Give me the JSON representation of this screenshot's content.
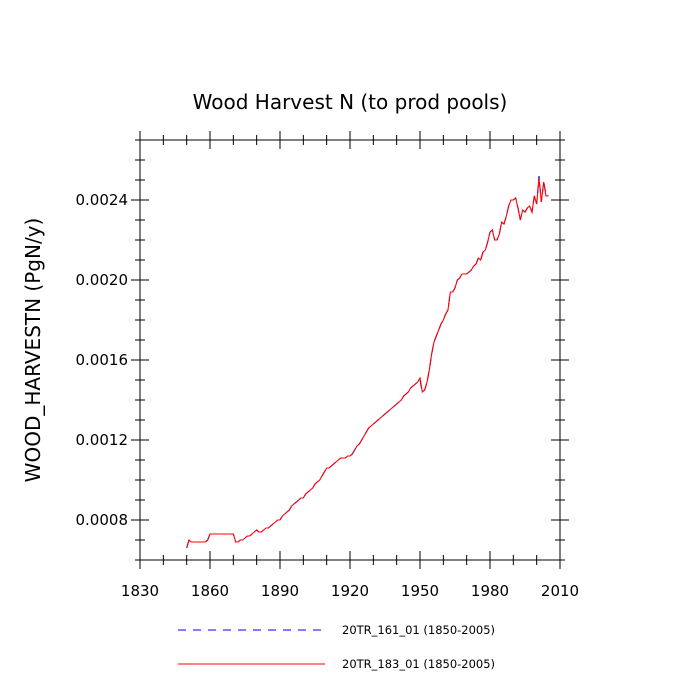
{
  "chart_data": {
    "type": "line",
    "title": "Wood Harvest N (to prod pools)",
    "xlabel": "",
    "ylabel": "WOOD_HARVESTN  (PgN/y)",
    "xlim": [
      1830,
      2010
    ],
    "ylim": [
      0.0006,
      0.0027
    ],
    "xticks": [
      1830,
      1860,
      1890,
      1920,
      1950,
      1980,
      2010
    ],
    "xtick_labels": [
      "1830",
      "1860",
      "1890",
      "1920",
      "1950",
      "1980",
      "2010"
    ],
    "yticks": [
      0.0008,
      0.0012,
      0.0016,
      0.002,
      0.0024
    ],
    "ytick_labels": [
      "0.0008",
      "0.0012",
      "0.0016",
      "0.0020",
      "0.0024"
    ],
    "grid": false,
    "legend_position": "bottom",
    "x": [
      1850,
      1851,
      1852,
      1853,
      1854,
      1855,
      1856,
      1857,
      1858,
      1859,
      1860,
      1861,
      1862,
      1863,
      1864,
      1865,
      1866,
      1867,
      1868,
      1869,
      1870,
      1871,
      1872,
      1873,
      1874,
      1875,
      1876,
      1877,
      1878,
      1879,
      1880,
      1881,
      1882,
      1883,
      1884,
      1885,
      1886,
      1887,
      1888,
      1889,
      1890,
      1891,
      1892,
      1893,
      1894,
      1895,
      1896,
      1897,
      1898,
      1899,
      1900,
      1901,
      1902,
      1903,
      1904,
      1905,
      1906,
      1907,
      1908,
      1909,
      1910,
      1911,
      1912,
      1913,
      1914,
      1915,
      1916,
      1917,
      1918,
      1919,
      1920,
      1921,
      1922,
      1923,
      1924,
      1925,
      1926,
      1927,
      1928,
      1929,
      1930,
      1931,
      1932,
      1933,
      1934,
      1935,
      1936,
      1937,
      1938,
      1939,
      1940,
      1941,
      1942,
      1943,
      1944,
      1945,
      1946,
      1947,
      1948,
      1949,
      1950,
      1951,
      1952,
      1953,
      1954,
      1955,
      1956,
      1957,
      1958,
      1959,
      1960,
      1961,
      1962,
      1963,
      1964,
      1965,
      1966,
      1967,
      1968,
      1969,
      1970,
      1971,
      1972,
      1973,
      1974,
      1975,
      1976,
      1977,
      1978,
      1979,
      1980,
      1981,
      1982,
      1983,
      1984,
      1985,
      1986,
      1987,
      1988,
      1989,
      1990,
      1991,
      1992,
      1993,
      1994,
      1995,
      1996,
      1997,
      1998,
      1999,
      2000,
      2001,
      2002,
      2003,
      2004,
      2005
    ],
    "series": [
      {
        "name": "20TR_161_01 (1850-2005)",
        "color": "#0000ff",
        "dash": "dashed",
        "values": [
          0.00066,
          0.0007,
          0.00069,
          0.00069,
          0.00069,
          0.00069,
          0.00069,
          0.00069,
          0.00069,
          0.0007,
          0.00073,
          0.00073,
          0.00073,
          0.00073,
          0.00073,
          0.00073,
          0.00073,
          0.00073,
          0.00073,
          0.00073,
          0.00073,
          0.00069,
          0.00069,
          0.0007,
          0.0007,
          0.00071,
          0.00072,
          0.00072,
          0.00073,
          0.00074,
          0.00075,
          0.00074,
          0.00074,
          0.00075,
          0.00076,
          0.00076,
          0.00077,
          0.00078,
          0.00079,
          0.0008,
          0.0008,
          0.00082,
          0.00083,
          0.00084,
          0.00085,
          0.00087,
          0.00088,
          0.00089,
          0.0009,
          0.00091,
          0.00091,
          0.00093,
          0.00094,
          0.00095,
          0.00096,
          0.00098,
          0.00099,
          0.001,
          0.00102,
          0.00104,
          0.00106,
          0.00106,
          0.00107,
          0.00108,
          0.00109,
          0.0011,
          0.00111,
          0.00111,
          0.00111,
          0.00112,
          0.00112,
          0.00113,
          0.00115,
          0.00117,
          0.00118,
          0.0012,
          0.00122,
          0.00124,
          0.00126,
          0.00127,
          0.00128,
          0.00129,
          0.0013,
          0.00131,
          0.00132,
          0.00133,
          0.00134,
          0.00135,
          0.00136,
          0.00137,
          0.00138,
          0.00139,
          0.0014,
          0.00142,
          0.00143,
          0.00144,
          0.00146,
          0.00147,
          0.00148,
          0.00149,
          0.0015,
          0.00144,
          0.00145,
          0.00149,
          0.00155,
          0.00163,
          0.00169,
          0.00172,
          0.00175,
          0.00178,
          0.0018,
          0.00183,
          0.00185,
          0.00194,
          0.00194,
          0.00196,
          0.002,
          0.00201,
          0.00203,
          0.00203,
          0.00203,
          0.00204,
          0.00205,
          0.00207,
          0.00208,
          0.00211,
          0.0021,
          0.00214,
          0.00215,
          0.00219,
          0.00224,
          0.00225,
          0.0022,
          0.0022,
          0.00223,
          0.00229,
          0.00228,
          0.00232,
          0.00237,
          0.0024,
          0.0024,
          0.00241,
          0.00236,
          0.0023,
          0.00235,
          0.00234,
          0.00236,
          0.00237,
          0.00234,
          0.00242,
          0.00238,
          0.00252,
          0.00239,
          0.00249,
          0.00243,
          0.00242
        ]
      },
      {
        "name": "20TR_183_01 (1850-2005)",
        "color": "#ff0000",
        "dash": "solid",
        "values": [
          0.00066,
          0.0007,
          0.00069,
          0.00069,
          0.00069,
          0.00069,
          0.00069,
          0.00069,
          0.00069,
          0.0007,
          0.00073,
          0.00073,
          0.00073,
          0.00073,
          0.00073,
          0.00073,
          0.00073,
          0.00073,
          0.00073,
          0.00073,
          0.00073,
          0.00069,
          0.00069,
          0.0007,
          0.0007,
          0.00071,
          0.00072,
          0.00072,
          0.00073,
          0.00074,
          0.00075,
          0.00074,
          0.00074,
          0.00075,
          0.00076,
          0.00076,
          0.00077,
          0.00078,
          0.00079,
          0.0008,
          0.0008,
          0.00082,
          0.00083,
          0.00084,
          0.00085,
          0.00087,
          0.00088,
          0.00089,
          0.0009,
          0.00091,
          0.00091,
          0.00093,
          0.00094,
          0.00095,
          0.00096,
          0.00098,
          0.00099,
          0.001,
          0.00102,
          0.00104,
          0.00106,
          0.00106,
          0.00107,
          0.00108,
          0.00109,
          0.0011,
          0.00111,
          0.00111,
          0.00111,
          0.00112,
          0.00112,
          0.00113,
          0.00115,
          0.00117,
          0.00118,
          0.0012,
          0.00122,
          0.00124,
          0.00126,
          0.00127,
          0.00128,
          0.00129,
          0.0013,
          0.00131,
          0.00132,
          0.00133,
          0.00134,
          0.00135,
          0.00136,
          0.00137,
          0.00138,
          0.00139,
          0.0014,
          0.00142,
          0.00143,
          0.00144,
          0.00146,
          0.00147,
          0.00148,
          0.00149,
          0.00151,
          0.00144,
          0.00145,
          0.00149,
          0.00155,
          0.00163,
          0.00169,
          0.00172,
          0.00175,
          0.00178,
          0.0018,
          0.00183,
          0.00185,
          0.00194,
          0.00194,
          0.00196,
          0.002,
          0.00201,
          0.00203,
          0.00203,
          0.00203,
          0.00204,
          0.00205,
          0.00207,
          0.00208,
          0.00211,
          0.0021,
          0.00214,
          0.00215,
          0.00219,
          0.00224,
          0.00225,
          0.0022,
          0.0022,
          0.00223,
          0.00229,
          0.00228,
          0.00232,
          0.00237,
          0.0024,
          0.0024,
          0.00241,
          0.00236,
          0.0023,
          0.00235,
          0.00234,
          0.00236,
          0.00237,
          0.00234,
          0.00242,
          0.00238,
          0.00251,
          0.00239,
          0.00249,
          0.00242,
          0.00242
        ]
      }
    ]
  }
}
